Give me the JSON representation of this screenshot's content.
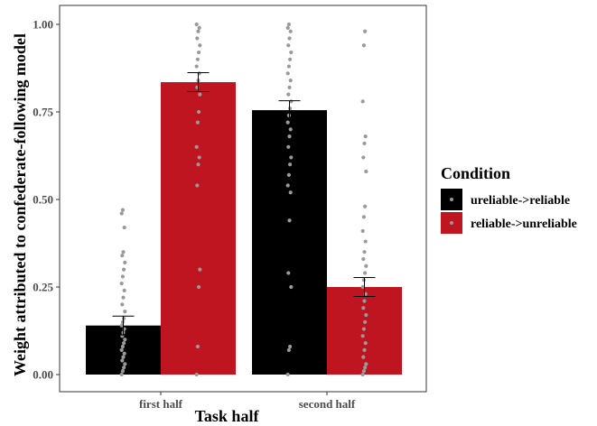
{
  "chart_data": {
    "type": "bar",
    "title": "",
    "xlabel": "Task half",
    "ylabel": "Weight attributed to confederate-following model",
    "categories": [
      "first half",
      "second half"
    ],
    "ylim": [
      0,
      1
    ],
    "yticks": [
      "0.00",
      "0.25",
      "0.50",
      "0.75",
      "1.00"
    ],
    "yticks_values": [
      0,
      0.25,
      0.5,
      0.75,
      1.0
    ],
    "grid": false,
    "legend": {
      "title": "Condition",
      "placement": "right"
    },
    "series": [
      {
        "name": "ureliable->reliable",
        "color": "#000000",
        "values": [
          0.14,
          0.755
        ],
        "error": [
          0.027,
          0.027
        ],
        "points": [
          [
            0.0,
            0.01,
            0.02,
            0.03,
            0.04,
            0.05,
            0.06,
            0.07,
            0.08,
            0.09,
            0.1,
            0.11,
            0.12,
            0.13,
            0.14,
            0.15,
            0.16,
            0.18,
            0.2,
            0.22,
            0.24,
            0.26,
            0.28,
            0.3,
            0.32,
            0.34,
            0.35,
            0.42,
            0.46,
            0.47
          ],
          [
            0.0,
            0.07,
            0.08,
            0.25,
            0.29,
            0.44,
            0.52,
            0.54,
            0.57,
            0.6,
            0.62,
            0.65,
            0.68,
            0.7,
            0.72,
            0.74,
            0.76,
            0.78,
            0.8,
            0.82,
            0.84,
            0.86,
            0.88,
            0.9,
            0.92,
            0.94,
            0.96,
            0.98,
            0.99,
            1.0
          ]
        ]
      },
      {
        "name": "reliable->unreliable",
        "color": "#bf1521",
        "values": [
          0.835,
          0.25
        ],
        "error": [
          0.027,
          0.027
        ],
        "points": [
          [
            0.0,
            0.08,
            0.25,
            0.3,
            0.54,
            0.6,
            0.62,
            0.65,
            0.72,
            0.75,
            0.8,
            0.82,
            0.84,
            0.86,
            0.88,
            0.9,
            0.92,
            0.94,
            0.96,
            0.98,
            0.99,
            1.0
          ],
          [
            0.0,
            0.01,
            0.02,
            0.03,
            0.05,
            0.07,
            0.09,
            0.11,
            0.13,
            0.15,
            0.17,
            0.19,
            0.21,
            0.23,
            0.25,
            0.27,
            0.29,
            0.31,
            0.33,
            0.35,
            0.38,
            0.41,
            0.45,
            0.48,
            0.58,
            0.62,
            0.66,
            0.68,
            0.78,
            0.94,
            0.98
          ]
        ]
      }
    ]
  }
}
